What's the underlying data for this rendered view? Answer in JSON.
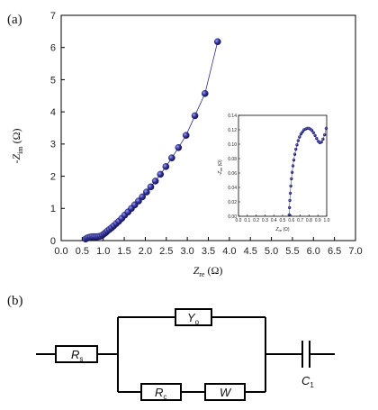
{
  "panels": {
    "a_label": "(a)",
    "b_label": "(b)"
  },
  "chart_data": [
    {
      "type": "scatter",
      "title": "",
      "xlabel": {
        "main": "Z",
        "sub": "re",
        "unit": "(Ω)"
      },
      "ylabel": {
        "prefix": "-Z",
        "sub": "im",
        "unit": "(Ω)"
      },
      "xlim": [
        0,
        7
      ],
      "ylim": [
        0,
        7
      ],
      "x_ticks": [
        "0.0",
        "0.5",
        "1.0",
        "1.5",
        "2.0",
        "2.5",
        "3.0",
        "3.5",
        "4.0",
        "4.5",
        "5.0",
        "5.5",
        "6.0",
        "6.5",
        "7.0"
      ],
      "y_ticks": [
        "0",
        "1",
        "2",
        "3",
        "4",
        "5",
        "6",
        "7"
      ],
      "grid": false,
      "marker_color": "#2a2a8c",
      "series": [
        {
          "x": [
            0.58,
            0.62,
            0.66,
            0.7,
            0.74,
            0.78,
            0.82,
            0.86,
            0.9,
            0.94,
            0.98,
            1.02,
            1.06,
            1.1,
            1.15,
            1.2,
            1.25,
            1.31,
            1.37,
            1.44,
            1.51,
            1.59,
            1.67,
            1.75,
            1.84,
            1.93,
            2.03,
            2.13,
            2.24,
            2.36,
            2.49,
            2.63,
            2.79,
            2.97,
            3.18,
            3.42,
            3.72
          ],
          "y": [
            0.05,
            0.08,
            0.1,
            0.11,
            0.12,
            0.12,
            0.12,
            0.12,
            0.13,
            0.14,
            0.17,
            0.21,
            0.25,
            0.3,
            0.35,
            0.4,
            0.46,
            0.53,
            0.6,
            0.69,
            0.79,
            0.89,
            1.0,
            1.11,
            1.23,
            1.36,
            1.51,
            1.67,
            1.85,
            2.06,
            2.3,
            2.57,
            2.89,
            3.27,
            3.88,
            4.57,
            6.18
          ]
        }
      ]
    },
    {
      "type": "scatter",
      "inset": true,
      "title": "",
      "xlabel": {
        "main": "Z",
        "sub": "re",
        "unit": "(Ω)"
      },
      "ylabel": {
        "prefix": "-Z",
        "sub": "im",
        "unit": "(Ω)"
      },
      "xlim": [
        0,
        1.0
      ],
      "ylim": [
        0,
        0.14
      ],
      "x_ticks": [
        "0.0",
        "0.1",
        "0.2",
        "0.3",
        "0.4",
        "0.5",
        "0.6",
        "0.7",
        "0.8",
        "0.9",
        "1.0"
      ],
      "y_ticks": [
        "0.00",
        "0.02",
        "0.04",
        "0.06",
        "0.08",
        "0.10",
        "0.12",
        "0.14"
      ],
      "marker_color": "#2a2a8c",
      "series": [
        {
          "x": [
            0.575,
            0.578,
            0.582,
            0.587,
            0.593,
            0.6,
            0.608,
            0.617,
            0.627,
            0.638,
            0.65,
            0.663,
            0.677,
            0.692,
            0.708,
            0.725,
            0.742,
            0.76,
            0.778,
            0.796,
            0.814,
            0.832,
            0.85,
            0.868,
            0.886,
            0.904,
            0.922,
            0.94,
            0.958,
            0.976,
            0.994
          ],
          "y": [
            0.002,
            0.012,
            0.022,
            0.032,
            0.042,
            0.052,
            0.061,
            0.07,
            0.078,
            0.086,
            0.093,
            0.099,
            0.105,
            0.11,
            0.114,
            0.117,
            0.12,
            0.121,
            0.122,
            0.122,
            0.121,
            0.119,
            0.116,
            0.112,
            0.108,
            0.104,
            0.102,
            0.103,
            0.107,
            0.113,
            0.122
          ]
        }
      ]
    }
  ],
  "circuit": {
    "rs": {
      "main": "R",
      "sub": "s"
    },
    "yo": {
      "main": "Y",
      "sub": "o"
    },
    "rc": {
      "main": "R",
      "sub": "c"
    },
    "w": {
      "main": "W"
    },
    "c1": {
      "main": "C",
      "sub": "1"
    }
  }
}
